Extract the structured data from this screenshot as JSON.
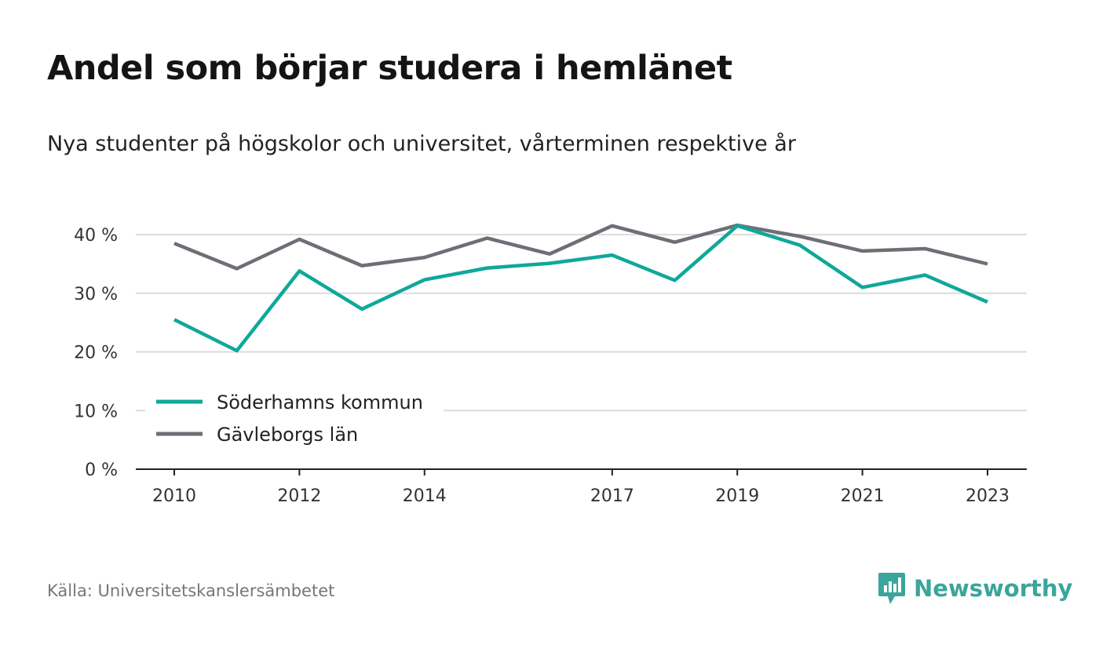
{
  "title": "Andel som börjar studera i hemlänet",
  "subtitle": "Nya studenter på högskolor och universitet, vårterminen respektive år",
  "source": "Källa: Universitetskanslersämbetet",
  "brand": "Newsworthy",
  "chart_data": {
    "type": "line",
    "x": [
      2010,
      2011,
      2012,
      2013,
      2014,
      2015,
      2016,
      2017,
      2018,
      2019,
      2020,
      2021,
      2022,
      2023
    ],
    "x_tick_labels": [
      "2010",
      "2012",
      "2014",
      "2017",
      "2019",
      "2021",
      "2023"
    ],
    "x_tick_values": [
      2010,
      2012,
      2014,
      2017,
      2019,
      2021,
      2023
    ],
    "y_tick_labels": [
      "0 %",
      "10 %",
      "20 %",
      "30 %",
      "40 %"
    ],
    "y_tick_values": [
      0,
      10,
      20,
      30,
      40
    ],
    "ylim": [
      0,
      40
    ],
    "grid": true,
    "legend_position": "bottom-left",
    "series": [
      {
        "name": "Söderhamns kommun",
        "color": "#0fa89a",
        "values": [
          25.5,
          20.2,
          33.8,
          27.3,
          32.3,
          34.3,
          35.1,
          36.5,
          32.2,
          41.5,
          38.2,
          31.0,
          33.1,
          28.5
        ]
      },
      {
        "name": "Gävleborgs län",
        "color": "#6e6e76",
        "values": [
          38.5,
          34.2,
          39.2,
          34.7,
          36.1,
          39.4,
          36.7,
          41.5,
          38.7,
          41.6,
          39.7,
          37.2,
          37.6,
          35.0
        ]
      }
    ]
  }
}
